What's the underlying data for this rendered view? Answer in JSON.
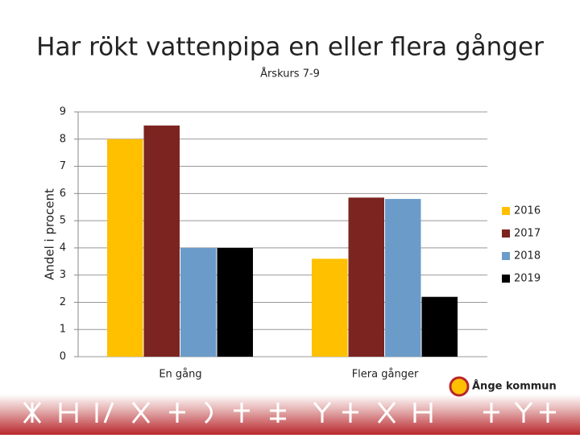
{
  "chart_data": {
    "type": "bar",
    "title": "Har rökt vattenpipa en eller flera gånger",
    "subtitle": "Årskurs 7-9",
    "y_label": "Andel i procent",
    "categories": [
      "En gång",
      "Flera gånger"
    ],
    "series": [
      {
        "name": "2016",
        "color": "#ffc000",
        "values": [
          8,
          3.6
        ]
      },
      {
        "name": "2017",
        "color": "#7b2420",
        "values": [
          8.5,
          5.85
        ]
      },
      {
        "name": "2018",
        "color": "#6b9bc9",
        "values": [
          4,
          5.8
        ]
      },
      {
        "name": "2019",
        "color": "#000000",
        "values": [
          4,
          2.2
        ]
      }
    ],
    "ylim": [
      0,
      9
    ],
    "yticks": [
      0,
      1,
      2,
      3,
      4,
      5,
      6,
      7,
      8,
      9
    ],
    "grid": true,
    "legend": "right"
  },
  "branding": {
    "logo_text": "Ånge kommun"
  }
}
